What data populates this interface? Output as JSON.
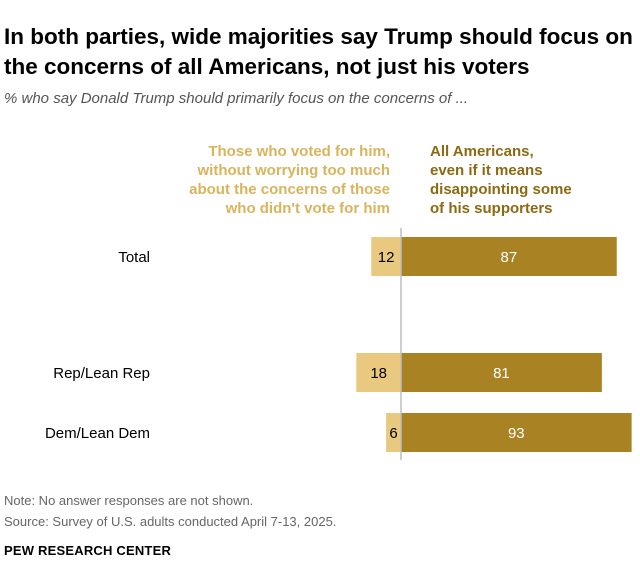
{
  "header": {
    "title": "In both parties, wide majorities say Trump should focus on the concerns of all Americans, not just his voters",
    "subtitle": "% who say Donald Trump should primarily focus on the concerns of ..."
  },
  "columns": {
    "left": [
      "Those who voted for him,",
      "without worrying too much",
      "about the concerns of those",
      "who didn't vote for him"
    ],
    "right": [
      "All Americans,",
      "even if it means",
      "disappointing some",
      "of his supporters"
    ]
  },
  "colors": {
    "left": "#e8c97f",
    "right": "#a98323",
    "left_text": "#d9b45c",
    "right_text": "#8c6a12",
    "axis": "#bdbdbd"
  },
  "chart_data": {
    "type": "bar",
    "orientation": "horizontal-diverging",
    "categories": [
      "Total",
      "Rep/Lean Rep",
      "Dem/Lean Dem"
    ],
    "series": [
      {
        "name": "Those who voted for him, without worrying too much about the concerns of those who didn't vote for him",
        "values": [
          12,
          18,
          6
        ]
      },
      {
        "name": "All Americans, even if it means disappointing some of his supporters",
        "values": [
          87,
          81,
          93
        ]
      }
    ],
    "title": "In both parties, wide majorities say Trump should focus on the concerns of all Americans, not just his voters",
    "xlabel": "",
    "ylabel": ""
  },
  "footer": {
    "note": "Note: No answer responses are not shown.",
    "source": "Source: Survey of U.S. adults conducted April 7-13, 2025.",
    "brand": "PEW RESEARCH CENTER"
  }
}
